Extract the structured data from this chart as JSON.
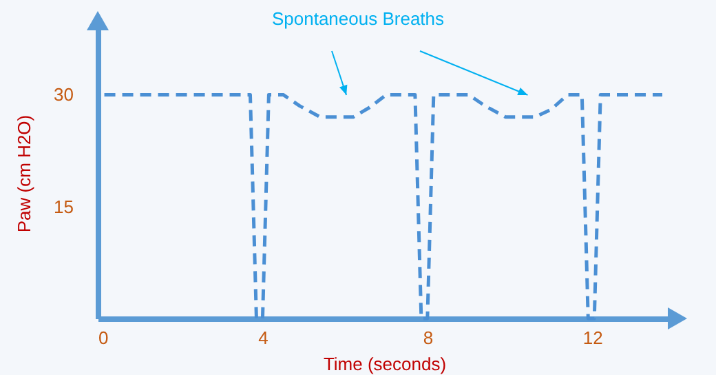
{
  "chart_data": {
    "type": "line",
    "xlabel": "Time (seconds)",
    "ylabel": "Paw (cm H2O)",
    "annotations": [
      "Spontaneous Breaths"
    ],
    "x": [
      0,
      3.7,
      3.85,
      4.0,
      4.15,
      4.5,
      4.9,
      5.4,
      6.2,
      6.6,
      7.0,
      7.7,
      7.85,
      8.0,
      8.15,
      9.0,
      9.4,
      9.9,
      10.6,
      11.0,
      11.4,
      11.75,
      11.9,
      12.05,
      12.2,
      13.7
    ],
    "series": [
      {
        "color": "#4a8fd4",
        "values": [
          30,
          30,
          0,
          0,
          30,
          30,
          28.5,
          27,
          27,
          28.3,
          30,
          30,
          0,
          0,
          30,
          30,
          28.5,
          27,
          27,
          28,
          30,
          30,
          0,
          0,
          30,
          30
        ]
      }
    ],
    "xlim": [
      0,
      13.9
    ],
    "ylim": [
      0,
      39
    ],
    "xticks": [
      0,
      4,
      8,
      12
    ],
    "yticks": [
      15,
      30
    ],
    "grid": false,
    "marker": "none",
    "line_style": "dashed"
  }
}
